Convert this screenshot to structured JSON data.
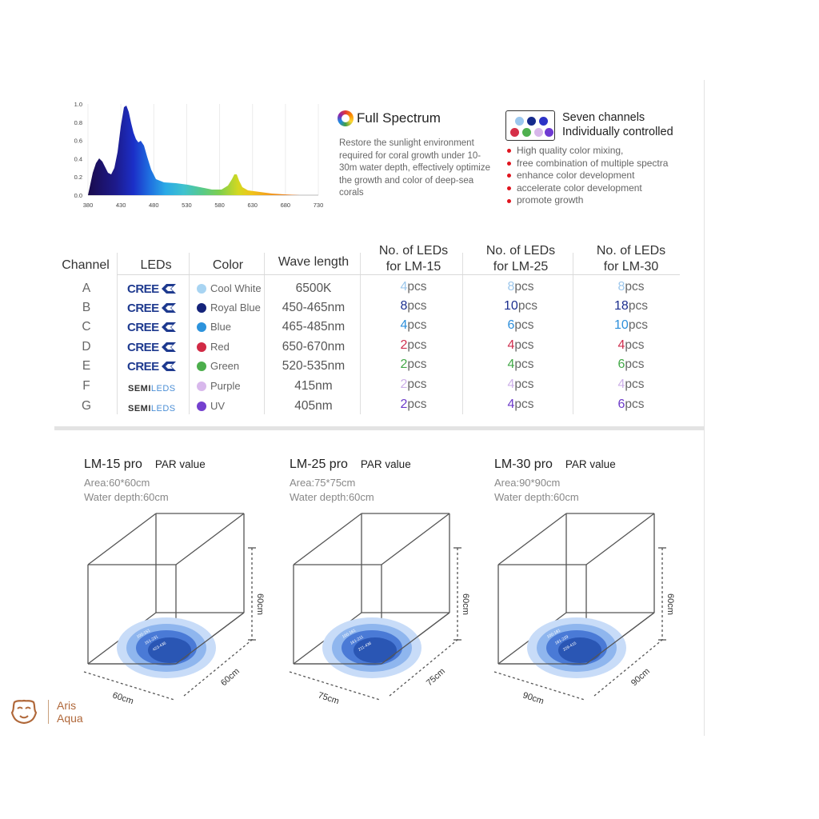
{
  "spectrum": {
    "y_ticks": [
      "1.0",
      "0.8",
      "0.6",
      "0.4",
      "0.2",
      "0.0"
    ],
    "x_ticks": [
      "380",
      "430",
      "480",
      "530",
      "580",
      "630",
      "680",
      "730"
    ]
  },
  "full_spectrum": {
    "title": "Full Spectrum",
    "description": "Restore the sunlight environment required for coral growth under 10-30m water depth, effectively optimize the growth and color of deep-sea corals"
  },
  "seven_channels": {
    "title_line1": "Seven channels",
    "title_line2": "Individually controlled",
    "dot_colors": [
      "#9bc7ee",
      "#152a8c",
      "#2c33c7",
      "#d52f48",
      "#4fb04f",
      "#d7b7ea",
      "#6e3ad2"
    ],
    "features": [
      "High quality color mixing,",
      "free combination of multiple spectra",
      "enhance color development",
      "accelerate color development",
      " promote growth"
    ]
  },
  "table": {
    "headers": {
      "channel": "Channel",
      "leds": "LEDs",
      "color": "Color",
      "wave": "Wave length",
      "lm15_1": "No. of LEDs",
      "lm15_2": "for LM-15",
      "lm25_1": "No. of LEDs",
      "lm25_2": "for LM-25",
      "lm30_1": "No. of LEDs",
      "lm30_2": "for LM-30"
    },
    "unit": "pcs",
    "rows": [
      {
        "channel": "A",
        "brand": "CREE",
        "color": "Cool White",
        "dot": "#a8d4f2",
        "wave": "6500K",
        "lm15": "4",
        "lm25": "8",
        "lm30": "8",
        "numcolor": "#9cc7ec"
      },
      {
        "channel": "B",
        "brand": "CREE",
        "color": "Royal Blue",
        "dot": "#14237a",
        "wave": "450-465nm",
        "lm15": "8",
        "lm25": "10",
        "lm30": "18",
        "numcolor": "#1c2f8f"
      },
      {
        "channel": "C",
        "brand": "CREE",
        "color": "Blue",
        "dot": "#2d93dc",
        "wave": "465-485nm",
        "lm15": "4",
        "lm25": "6",
        "lm30": "10",
        "numcolor": "#2d8fdb"
      },
      {
        "channel": "D",
        "brand": "CREE",
        "color": "Red",
        "dot": "#d12a45",
        "wave": "650-670nm",
        "lm15": "2",
        "lm25": "4",
        "lm30": "4",
        "numcolor": "#cf2f4f"
      },
      {
        "channel": "E",
        "brand": "CREE",
        "color": "Green",
        "dot": "#4cae4c",
        "wave": "520-535nm",
        "lm15": "2",
        "lm25": "4",
        "lm30": "6",
        "numcolor": "#43a848"
      },
      {
        "channel": "F",
        "brand": "SEMILEDS",
        "color": "Purple",
        "dot": "#d8b8ec",
        "wave": "415nm",
        "lm15": "2",
        "lm25": "4",
        "lm30": "4",
        "numcolor": "#cdb0e8"
      },
      {
        "channel": "G",
        "brand": "SEMILEDS",
        "color": "UV",
        "dot": "#7440cf",
        "wave": "405nm",
        "lm15": "2",
        "lm25": "4",
        "lm30": "6",
        "numcolor": "#6d3bc9"
      }
    ]
  },
  "logos": {
    "cree": "CREE",
    "semileds_a": "SEMI",
    "semileds_b": "LEDS"
  },
  "par_panels": [
    {
      "model": "LM-15 pro",
      "par_label": "PAR value",
      "area": "Area:60*60cm",
      "depth": "Water depth:60cm",
      "height_label": "60cm",
      "width_label": "60cm",
      "depth_label": "60cm",
      "rings": [
        "100-151",
        "151-231",
        "423-436"
      ]
    },
    {
      "model": "LM-25 pro",
      "par_label": "PAR value",
      "area": "Area:75*75cm",
      "depth": "Water depth:60cm",
      "height_label": "60cm",
      "width_label": "75cm",
      "depth_label": "75cm",
      "rings": [
        "100-161",
        "161-211",
        "211-436"
      ]
    },
    {
      "model": "LM-30 pro",
      "par_label": "PAR value",
      "area": "Area:90*90cm",
      "depth": "Water depth:60cm",
      "height_label": "60cm",
      "width_label": "90cm",
      "depth_label": "90cm",
      "rings": [
        "100-181",
        "181-229",
        "229-415"
      ]
    }
  ],
  "brand": {
    "line1": "Aris",
    "line2": "Aqua"
  }
}
